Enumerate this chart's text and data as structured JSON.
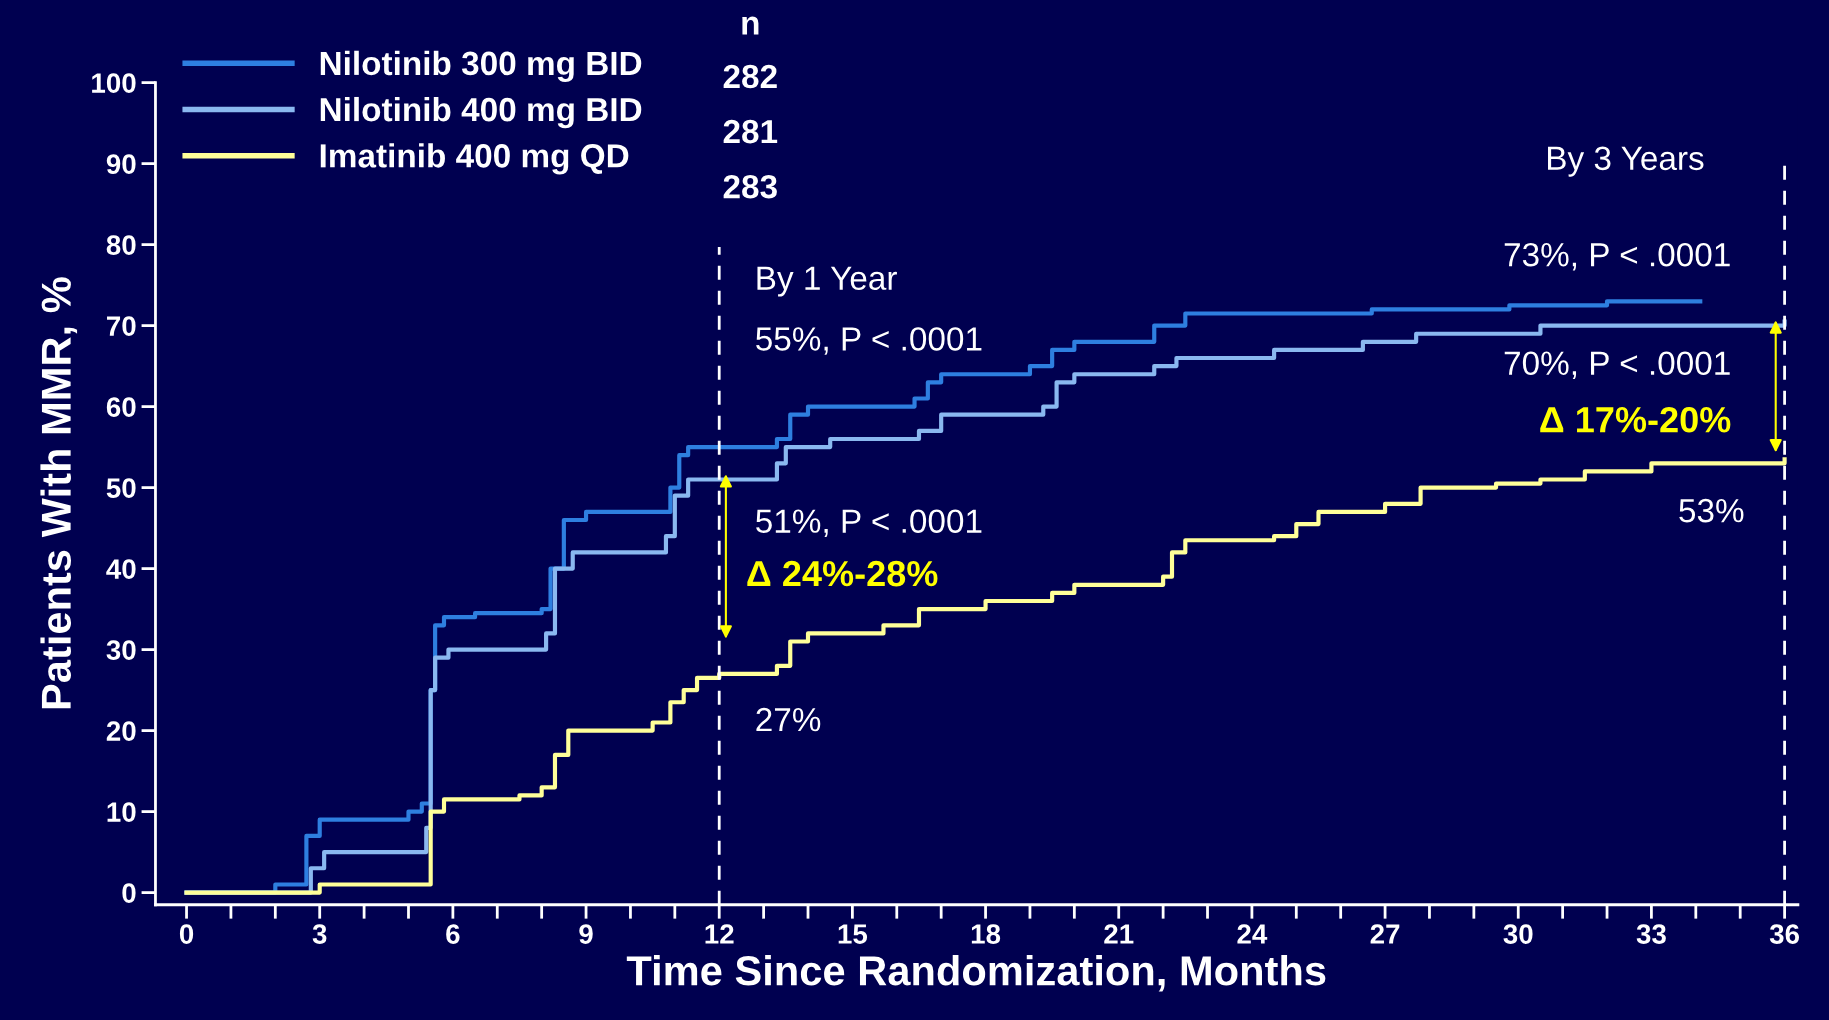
{
  "chart_data": {
    "type": "step",
    "xlabel": "Time Since Randomization, Months",
    "ylabel": "Patients With MMR, %",
    "xlim": [
      -0.7,
      36.3
    ],
    "ylim": [
      -1.5,
      100
    ],
    "xticks": [
      0,
      {
        "value": 1,
        "label": null
      },
      {
        "value": 2,
        "label": null
      },
      3,
      {
        "value": 4,
        "label": null
      },
      {
        "value": 5,
        "label": null
      },
      6,
      {
        "value": 7,
        "label": null
      },
      {
        "value": 8,
        "label": null
      },
      9,
      {
        "value": 10,
        "label": null
      },
      {
        "value": 11,
        "label": null
      },
      12,
      {
        "value": 13,
        "label": null
      },
      {
        "value": 14,
        "label": null
      },
      15,
      {
        "value": 16,
        "label": null
      },
      {
        "value": 17,
        "label": null
      },
      18,
      {
        "value": 19,
        "label": null
      },
      {
        "value": 20,
        "label": null
      },
      21,
      {
        "value": 22,
        "label": null
      },
      {
        "value": 23,
        "label": null
      },
      24,
      {
        "value": 25,
        "label": null
      },
      {
        "value": 26,
        "label": null
      },
      27,
      {
        "value": 28,
        "label": null
      },
      {
        "value": 29,
        "label": null
      },
      30,
      {
        "value": 31,
        "label": null
      },
      {
        "value": 32,
        "label": null
      },
      33,
      {
        "value": 34,
        "label": null
      },
      {
        "value": 35,
        "label": null
      },
      36
    ],
    "yticks": [
      0,
      10,
      20,
      30,
      40,
      50,
      60,
      70,
      80,
      90,
      100
    ],
    "grid": false,
    "legend": "top left",
    "line_style": "solid",
    "series": [
      {
        "name": "Nilotinib 300 mg BID",
        "color": "#2e7fe0",
        "x": [
          0,
          2.0,
          2.7,
          3.0,
          5.0,
          5.3,
          5.5,
          5.6,
          5.8,
          6.5,
          8.0,
          8.2,
          8.5,
          9.0,
          10.9,
          11.1,
          11.3,
          13.3,
          13.6,
          14.0,
          16.4,
          16.7,
          17.0,
          19.0,
          19.5,
          20.0,
          21.8,
          22.5,
          26.7,
          29.8,
          32.0,
          34.1
        ],
        "values": [
          0,
          1,
          7,
          9,
          10,
          11,
          25,
          33,
          34,
          34.5,
          35,
          40,
          46,
          47,
          50,
          54,
          55,
          56,
          59,
          60,
          61,
          63,
          64,
          65,
          67,
          68,
          70,
          71.5,
          72,
          72.5,
          73,
          73
        ]
      },
      {
        "name": "Nilotinib 400 mg BID",
        "color": "#8ab8f0",
        "x": [
          0,
          2.8,
          3.1,
          5.4,
          5.5,
          5.6,
          5.9,
          8.1,
          8.3,
          8.7,
          10.8,
          11.0,
          11.3,
          13.3,
          13.5,
          14.5,
          16.5,
          17.0,
          19.3,
          19.6,
          20.0,
          21.8,
          22.3,
          24.5,
          26.5,
          27.7,
          30.5,
          36.0
        ],
        "values": [
          0,
          3,
          5,
          8,
          25,
          29,
          30,
          32,
          40,
          42,
          44,
          49,
          51,
          53,
          55,
          56,
          57,
          59,
          60,
          63,
          64,
          65,
          66,
          67,
          68,
          69,
          70,
          70.5
        ]
      },
      {
        "name": "Imatinib 400 mg QD",
        "color": "#ffff99",
        "x": [
          0,
          3.0,
          5.5,
          5.8,
          7.5,
          8.0,
          8.3,
          8.6,
          10.5,
          10.9,
          11.2,
          11.5,
          12.0,
          13.3,
          13.6,
          14.0,
          15.7,
          16.5,
          18.0,
          19.5,
          20.0,
          22.0,
          22.2,
          22.5,
          24.5,
          25.0,
          25.5,
          27.0,
          27.8,
          29.5,
          30.5,
          31.5,
          33.0,
          36.0
        ],
        "values": [
          0,
          1,
          10,
          11.5,
          12,
          13,
          17,
          20,
          21,
          23.5,
          25,
          26.5,
          27,
          28,
          31,
          32,
          33,
          35,
          36,
          37,
          38,
          39,
          42,
          43.5,
          44,
          45.5,
          47,
          48,
          50,
          50.5,
          51,
          52,
          53,
          53.5
        ]
      }
    ],
    "ref_lines": [
      {
        "axis": "x",
        "value": 12,
        "color": "#ffffff",
        "line_style": "dashed"
      },
      {
        "axis": "x",
        "value": 36,
        "color": "#ffffff",
        "line_style": "dashed"
      }
    ],
    "annotations": [
      "n",
      "282",
      "281",
      "283",
      "By 1 Year",
      "55%, P < .0001",
      "51%, P < .0001",
      "Δ 24%-28%",
      "27%",
      "By 3 Years",
      "73%, P < .0001",
      "70%, P < .0001",
      "Δ 17%-20%",
      "53%"
    ]
  }
}
